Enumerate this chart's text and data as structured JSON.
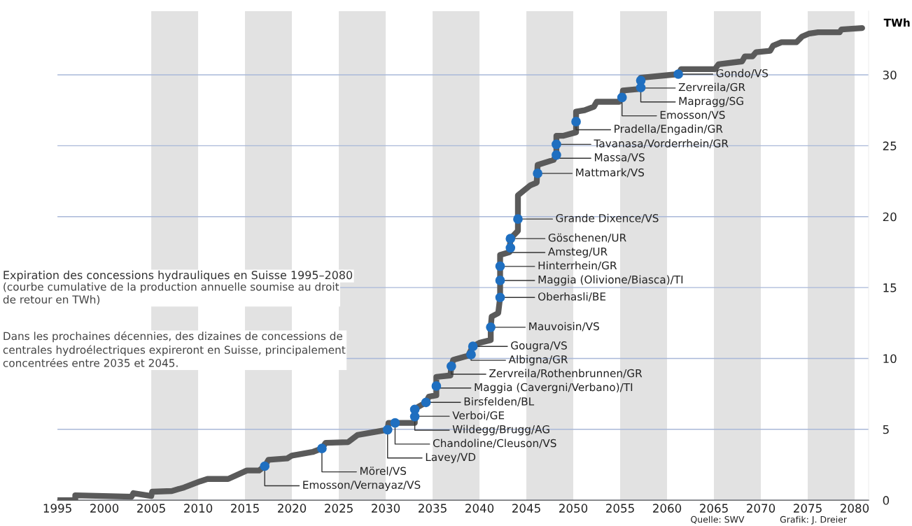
{
  "chart_data": {
    "type": "line",
    "title": "Expiration des concessions hydrauliques en Suisse 1995–2080",
    "subtitle": "(courbe cumulative de la production annuelle soumise au droit\nde retour en TWh)",
    "ylabel": "TWh",
    "xlim": [
      1995,
      2081.5
    ],
    "xticks": [
      1995,
      2000,
      2005,
      2010,
      2015,
      2020,
      2025,
      2030,
      2035,
      2040,
      2045,
      2050,
      2055,
      2060,
      2065,
      2070,
      2075,
      2080
    ],
    "ylim": [
      0,
      34.5
    ],
    "yticks": [
      0,
      5,
      10,
      15,
      20,
      25,
      30
    ],
    "grid": "y",
    "series": [
      {
        "color": "#5a5a5a",
        "x": [
          1995,
          1996.9,
          1996.9,
          2002.9,
          2003.1,
          2005,
          2005.1,
          2007.2,
          2008.5,
          2010.2,
          2011,
          2013.2,
          2015.2,
          2016.5,
          2017.1,
          2017.5,
          2019.5,
          2020,
          2022.2,
          2023.2,
          2023.6,
          2026,
          2027,
          2030.2,
          2030.3,
          2033.1,
          2033.1,
          2033.5,
          2034.3,
          2034.6,
          2035.4,
          2035.4,
          2036.9,
          2037,
          2037.2,
          2038.8,
          2039.3,
          2040,
          2041.2,
          2041.2,
          2041.3,
          2042,
          2042.2,
          2042.2,
          2043.2,
          2043.3,
          2044.1,
          2044.1,
          2045.4,
          2046.1,
          2046.2,
          2047.9,
          2048.2,
          2048.2,
          2048.9,
          2050.3,
          2050.3,
          2051.2,
          2052.2,
          2052.5,
          2054.9,
          2055.2,
          2055.3,
          2056.9,
          2057.2,
          2057.2,
          2061.2,
          2061.5,
          2065.1,
          2065.5,
          2068,
          2068.3,
          2069.1,
          2069.5,
          2071,
          2071.3,
          2072.2,
          2073.8,
          2074.4,
          2075.1,
          2076.1,
          2078.4,
          2078.6,
          2080.8
        ],
        "values": [
          0,
          0,
          0.35,
          0.25,
          0.5,
          0.3,
          0.6,
          0.65,
          0.9,
          1.33,
          1.5,
          1.5,
          2.1,
          2.1,
          2.4,
          2.85,
          2.95,
          3.15,
          3.4,
          3.65,
          4.05,
          4.1,
          4.6,
          4.97,
          5.45,
          5.45,
          6.4,
          6.6,
          6.9,
          7.3,
          7.4,
          8.7,
          8.8,
          9.45,
          9.9,
          10.2,
          10.85,
          11.1,
          11.3,
          12.2,
          12.95,
          13.2,
          14.3,
          17.3,
          17.5,
          18.45,
          19.0,
          21.5,
          22.2,
          22.4,
          23.65,
          24.0,
          24.35,
          25.7,
          25.7,
          25.95,
          27.4,
          27.5,
          27.75,
          28.1,
          28.1,
          28.4,
          28.9,
          29.0,
          29.1,
          29.8,
          30.05,
          30.4,
          30.4,
          30.75,
          30.95,
          31.3,
          31.3,
          31.6,
          31.7,
          32.05,
          32.3,
          32.3,
          32.7,
          32.9,
          33.0,
          33.0,
          33.2,
          33.3
        ]
      },
      {
        "type": "scatter",
        "color": "#1f6fc0",
        "marker": "circle",
        "x": [
          2017.1,
          2023.2,
          2030.2,
          2031,
          2033.1,
          2033.1,
          2034.3,
          2035.4,
          2037,
          2039.1,
          2039.3,
          2041.2,
          2042.2,
          2042.2,
          2042.2,
          2043.3,
          2043.3,
          2044.1,
          2046.2,
          2048.2,
          2048.2,
          2050.3,
          2055.2,
          2057.2,
          2057.2,
          2061.2
        ],
        "values": [
          2.4,
          3.65,
          4.97,
          5.45,
          5.9,
          6.4,
          6.9,
          8.05,
          9.45,
          10.27,
          10.85,
          12.2,
          14.3,
          15.5,
          16.5,
          17.8,
          18.45,
          19.83,
          23.05,
          24.35,
          25.1,
          26.7,
          28.4,
          29.1,
          29.6,
          30.05
        ]
      }
    ],
    "bands": [
      {
        "axis": "x",
        "from": 2005,
        "to": 2010,
        "color": "#e2e2e2"
      },
      {
        "axis": "x",
        "from": 2015,
        "to": 2020,
        "color": "#e2e2e2"
      },
      {
        "axis": "x",
        "from": 2025,
        "to": 2030,
        "color": "#e2e2e2"
      },
      {
        "axis": "x",
        "from": 2035,
        "to": 2040,
        "color": "#e2e2e2"
      },
      {
        "axis": "x",
        "from": 2045,
        "to": 2050,
        "color": "#e2e2e2"
      },
      {
        "axis": "x",
        "from": 2055,
        "to": 2060,
        "color": "#e2e2e2"
      },
      {
        "axis": "x",
        "from": 2065,
        "to": 2070,
        "color": "#e2e2e2"
      },
      {
        "axis": "x",
        "from": 2075,
        "to": 2080,
        "color": "#e2e2e2"
      }
    ],
    "annotations": [
      {
        "text": "Emosson/Vernayaz/VS",
        "x": 2017.1,
        "y": 2.4
      },
      {
        "text": "Mörel/VS",
        "x": 2023.2,
        "y": 3.65
      },
      {
        "text": "Lavey/VD",
        "x": 2030.2,
        "y": 4.97
      },
      {
        "text": "Chandoline/Cleuson/VS",
        "x": 2031,
        "y": 5.45
      },
      {
        "text": "Wildegg/Brugg/AG",
        "x": 2033.1,
        "y": 5.9
      },
      {
        "text": "Verboi/GE",
        "x": 2033.1,
        "y": 6.4
      },
      {
        "text": "Birsfelden/BL",
        "x": 2034.3,
        "y": 6.9
      },
      {
        "text": "Maggia (Cavergni/Verbano)/TI",
        "x": 2035.4,
        "y": 8.05
      },
      {
        "text": "Zervreila/Rothenbrunnen/GR",
        "x": 2037,
        "y": 9.45
      },
      {
        "text": "Albigna/GR",
        "x": 2039.1,
        "y": 10.27
      },
      {
        "text": "Gougra/VS",
        "x": 2039.3,
        "y": 10.85
      },
      {
        "text": "Mauvoisin/VS",
        "x": 2041.2,
        "y": 12.2
      },
      {
        "text": "Oberhasli/BE",
        "x": 2042.2,
        "y": 14.3
      },
      {
        "text": "Maggia (Olivione/Biasca)/TI",
        "x": 2042.2,
        "y": 15.5
      },
      {
        "text": "Hinterrhein/GR",
        "x": 2042.2,
        "y": 16.5
      },
      {
        "text": "Amsteg/UR",
        "x": 2043.3,
        "y": 17.8
      },
      {
        "text": "Göschenen/UR",
        "x": 2043.3,
        "y": 18.45
      },
      {
        "text": "Grande Dixence/VS",
        "x": 2044.1,
        "y": 19.83
      },
      {
        "text": "Mattmark/VS",
        "x": 2046.2,
        "y": 23.05
      },
      {
        "text": "Massa/VS",
        "x": 2048.2,
        "y": 24.35
      },
      {
        "text": "Tavanasa/Vorderrhein/GR",
        "x": 2048.2,
        "y": 25.1
      },
      {
        "text": "Pradella/Engadin/GR",
        "x": 2050.3,
        "y": 26.7
      },
      {
        "text": "Emosson/VS",
        "x": 2055.2,
        "y": 28.4
      },
      {
        "text": "Mapragg/SG",
        "x": 2057.2,
        "y": 29.1
      },
      {
        "text": "Zervreila/GR",
        "x": 2057.2,
        "y": 29.6
      },
      {
        "text": "Gondo/VS",
        "x": 2061.2,
        "y": 30.05
      },
      "Dans les prochaines décennies, des dizaines de concessions de\ncentrales hydroélectriques expireront en Suisse, principalement\nconcentrées entre 2035 et 2045.",
      "Quelle: SWV",
      "Grafik: J. Dreier"
    ]
  }
}
